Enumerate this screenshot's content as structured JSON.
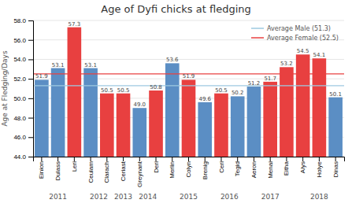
{
  "chart_data": {
    "type": "bar",
    "title": "Age of Dyfi chicks at fledging",
    "y_label": "Age at Fledging/Days",
    "categories": [
      "Einion",
      "Dulass",
      "Leri",
      "Ceulam",
      "Clarach",
      "Ceriast",
      "Greynant",
      "Deri",
      "Merlin",
      "Colyn",
      "Brenig",
      "Ceri",
      "Tegid",
      "Aeron",
      "Menai",
      "Eitha",
      "Alys",
      "Holye",
      "Dinas"
    ],
    "groups": [
      "2011",
      "2011",
      "2011",
      "2012",
      "2012",
      "2013",
      "2014",
      "2014",
      "2015",
      "2015",
      "2015",
      "2016",
      "2016",
      "2017",
      "2017",
      "2017",
      "2018",
      "2018",
      "2018"
    ],
    "values": [
      51.9,
      53.1,
      57.3,
      53.1,
      50.5,
      50.5,
      49.0,
      50.8,
      53.6,
      51.9,
      49.6,
      50.5,
      50.2,
      51.2,
      51.7,
      53.2,
      54.5,
      54.1,
      50.1
    ],
    "value_labels": [
      "51.9",
      "53.1",
      "57.3",
      "53.1",
      "50.5",
      "50.5",
      "49.0",
      "50.8",
      "53.6",
      "51.9",
      "49.6",
      "50.5",
      "50.2",
      "51.2",
      "51.7",
      "53.2",
      "54.5",
      "54.1",
      "50.1"
    ],
    "colors": [
      "#5b8ec4",
      "#5b8ec4",
      "#e84040",
      "#5b8ec4",
      "#e84040",
      "#e84040",
      "#5b8ec4",
      "#e84040",
      "#5b8ec4",
      "#e84040",
      "#5b8ec4",
      "#e84040",
      "#5b8ec4",
      "#5b8ec4",
      "#e84040",
      "#e84040",
      "#e84040",
      "#e84040",
      "#5b8ec4"
    ],
    "data_labels": true,
    "hlines": [
      {
        "name": "Average Male (51.3)",
        "value": 51.3,
        "color": "#9ecae1"
      },
      {
        "name": "Average Female (52.5)",
        "value": 52.5,
        "color": "#e84040"
      }
    ],
    "legend": "upper right",
    "grid": true,
    "ylim": [
      44,
      58
    ],
    "yticks": [
      {
        "value": 44,
        "label": "44.0"
      },
      {
        "value": 46,
        "label": "46.0"
      },
      {
        "value": 48,
        "label": "48.0"
      },
      {
        "value": 50,
        "label": "50.0"
      },
      {
        "value": 52,
        "label": "52.0"
      },
      {
        "value": 54,
        "label": "54.0"
      },
      {
        "value": 56,
        "label": "56.0"
      },
      {
        "value": 58,
        "label": "58.0"
      }
    ]
  }
}
